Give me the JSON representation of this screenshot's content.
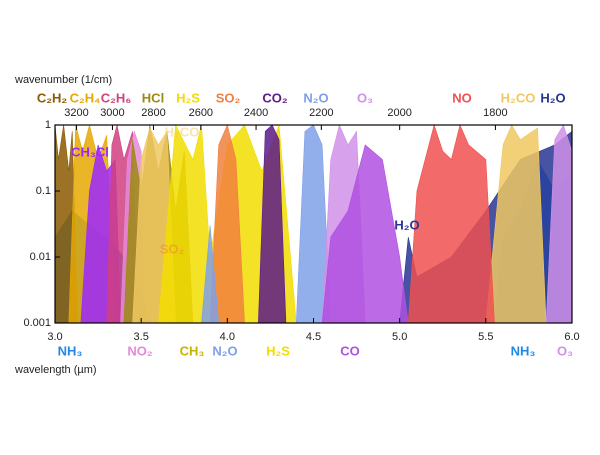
{
  "chart_data": {
    "type": "area",
    "xlabel": "wavelength (µm)",
    "x2label": "wavenumber (1/cm)",
    "xlim": [
      3,
      6
    ],
    "xticks": [
      {
        "value": 3,
        "label": "3.0"
      },
      3.5,
      {
        "value": 4,
        "label": "4.0"
      },
      4.5,
      {
        "value": 5,
        "label": "5.0"
      },
      5.5,
      {
        "value": 6,
        "label": "6.0"
      }
    ],
    "x2ticks": [
      3200,
      3000,
      2800,
      2600,
      2400,
      2200,
      2000,
      1800
    ],
    "ylim": [
      0.001,
      1
    ],
    "yticks": [
      0.001,
      0.01,
      0.1,
      1
    ],
    "log_y": true,
    "series": [
      {
        "name": "NH₃",
        "color": "#1e88e5",
        "x": [
          3.0,
          3.1,
          3.2,
          3.3,
          3.4,
          3.5,
          3.55,
          4.5,
          5.55,
          5.6,
          5.7,
          5.8,
          5.9,
          6.0
        ],
        "values": [
          0.02,
          0.05,
          0.03,
          0.02,
          0.01,
          0.003,
          0.001,
          null,
          0.001,
          0.02,
          0.05,
          0.3,
          0.1,
          0.2
        ]
      },
      {
        "name": "H₂O",
        "color": "#283593",
        "x": [
          5.0,
          5.05,
          5.1,
          5.3,
          5.5,
          5.7,
          5.9,
          6.0
        ],
        "values": [
          0.001,
          0.02,
          0.005,
          0.01,
          0.05,
          0.3,
          0.5,
          0.8
        ]
      },
      {
        "name": "C₂H₂",
        "color": "#8b5a00",
        "x": [
          3.0,
          3.02,
          3.05,
          3.08,
          3.1,
          3.13
        ],
        "values": [
          1,
          0.3,
          1,
          0.2,
          0.8,
          0.001
        ]
      },
      {
        "name": "C₂H₄",
        "color": "#e6a800",
        "x": [
          3.08,
          3.12,
          3.16,
          3.2,
          3.25,
          3.3,
          3.35
        ],
        "values": [
          0.001,
          1,
          0.4,
          1,
          0.3,
          0.7,
          0.001
        ]
      },
      {
        "name": "CH₃Cl",
        "color": "#9c27ff",
        "x": [
          3.15,
          3.2,
          3.25,
          3.3,
          3.35,
          3.38
        ],
        "values": [
          0.001,
          0.1,
          0.5,
          0.2,
          0.3,
          0.001
        ]
      },
      {
        "name": "C₂H₆",
        "color": "#d04080",
        "x": [
          3.3,
          3.33,
          3.36,
          3.4,
          3.45,
          3.48
        ],
        "values": [
          0.001,
          0.5,
          1,
          0.3,
          0.8,
          0.001
        ]
      },
      {
        "name": "NO₂",
        "color": "#e58ad8",
        "x": [
          3.38,
          3.42,
          3.46,
          3.5,
          3.52
        ],
        "values": [
          0.001,
          0.3,
          0.8,
          0.4,
          0.001
        ]
      },
      {
        "name": "HCl",
        "color": "#9c8a10",
        "x": [
          3.4,
          3.45,
          3.5,
          3.55,
          3.6,
          3.65,
          3.7,
          3.75,
          3.8
        ],
        "values": [
          0.001,
          0.6,
          0.1,
          1,
          0.2,
          0.8,
          0.05,
          0.4,
          0.001
        ]
      },
      {
        "name": "H₂CO",
        "color": "#f0c860",
        "x": [
          3.45,
          3.5,
          3.55,
          3.6,
          3.65,
          3.7,
          4.9,
          5.5,
          5.6,
          5.65,
          5.7,
          5.8,
          5.85
        ],
        "values": [
          0.001,
          0.3,
          0.9,
          0.5,
          0.8,
          0.001,
          null,
          0.001,
          0.5,
          1,
          0.6,
          0.9,
          0.001
        ]
      },
      {
        "name": "H₂S",
        "color": "#f2dd00",
        "x": [
          3.6,
          3.7,
          3.8,
          3.85,
          3.9,
          4.0,
          4.1,
          4.2,
          4.3,
          4.4
        ],
        "values": [
          0.001,
          1,
          0.3,
          1,
          0.01,
          0.5,
          1,
          0.2,
          1,
          0.001
        ]
      },
      {
        "name": "SO₂",
        "color": "#f08040",
        "x": [
          3.9,
          3.95,
          4.0,
          4.05,
          4.1
        ],
        "values": [
          0.001,
          0.5,
          1,
          0.3,
          0.001
        ]
      },
      {
        "name": "N₂O",
        "color": "#7fa0e8",
        "x": [
          3.85,
          3.9,
          3.95,
          4.2,
          4.4,
          4.45,
          4.5,
          4.55,
          4.6
        ],
        "values": [
          0.001,
          0.03,
          0.001,
          null,
          0.001,
          0.8,
          1,
          0.5,
          0.001
        ]
      },
      {
        "name": "CO₂",
        "color": "#5b1a8a",
        "x": [
          4.18,
          4.22,
          4.26,
          4.3,
          4.34
        ],
        "values": [
          0.001,
          0.8,
          1,
          0.6,
          0.001
        ]
      },
      {
        "name": "O₃",
        "color": "#d090e8",
        "x": [
          4.55,
          4.6,
          4.65,
          4.7,
          4.75,
          4.8,
          5.3,
          5.85,
          5.9,
          5.95,
          6.0
        ],
        "values": [
          0.001,
          0.3,
          1,
          0.5,
          0.8,
          0.001,
          null,
          0.001,
          0.6,
          1,
          0.4
        ]
      },
      {
        "name": "CO",
        "color": "#b050e0",
        "x": [
          4.55,
          4.6,
          4.7,
          4.8,
          4.9,
          5.0,
          5.05
        ],
        "values": [
          0.001,
          0.02,
          0.05,
          0.5,
          0.3,
          0.01,
          0.001
        ]
      },
      {
        "name": "NO",
        "color": "#f05050",
        "x": [
          5.05,
          5.1,
          5.2,
          5.25,
          5.3,
          5.35,
          5.4,
          5.5,
          5.55
        ],
        "values": [
          0.001,
          0.1,
          1,
          0.4,
          0.3,
          1,
          0.5,
          0.3,
          0.001
        ]
      }
    ],
    "annotations": [
      {
        "text": "CH₃",
        "color": "#c8b400"
      }
    ]
  }
}
